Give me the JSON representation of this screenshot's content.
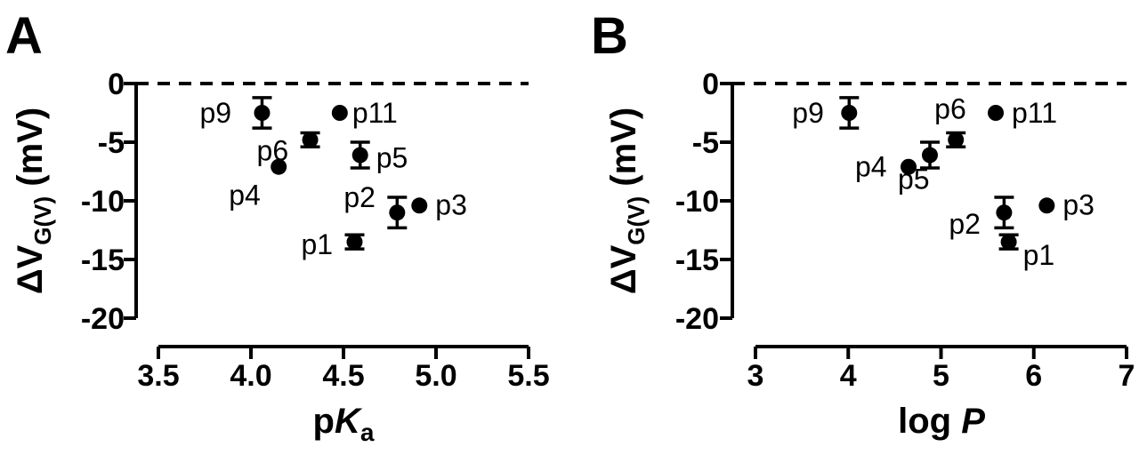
{
  "chart_data": [
    {
      "type": "scatter",
      "panel": "A",
      "xlabel": "pKa",
      "ylabel": "ΔVG(V) (mV)",
      "xlim": [
        3.5,
        5.5
      ],
      "ylim": [
        -20,
        0
      ],
      "xticks": [
        "3.5",
        "4.0",
        "4.5",
        "5.0",
        "5.5"
      ],
      "yticks": [
        "0",
        "-5",
        "-10",
        "-15",
        "-20"
      ],
      "reference_line_y": 0,
      "points": [
        {
          "label": "p9",
          "x": 4.06,
          "y": -2.5,
          "err": 1.3
        },
        {
          "label": "p11",
          "x": 4.48,
          "y": -2.5,
          "err": 0
        },
        {
          "label": "p6",
          "x": 4.32,
          "y": -4.8,
          "err": 0.6
        },
        {
          "label": "p5",
          "x": 4.59,
          "y": -6.1,
          "err": 1.1
        },
        {
          "label": "p4",
          "x": 4.15,
          "y": -7.1,
          "err": 0
        },
        {
          "label": "p2",
          "x": 4.79,
          "y": -11.0,
          "err": 1.3
        },
        {
          "label": "p3",
          "x": 4.91,
          "y": -10.4,
          "err": 0
        },
        {
          "label": "p1",
          "x": 4.56,
          "y": -13.5,
          "err": 0.6
        }
      ]
    },
    {
      "type": "scatter",
      "panel": "B",
      "xlabel": "log P",
      "ylabel": "ΔVG(V) (mV)",
      "xlim": [
        3,
        7
      ],
      "ylim": [
        -20,
        0
      ],
      "xticks": [
        "3",
        "4",
        "5",
        "6",
        "7"
      ],
      "yticks": [
        "0",
        "-5",
        "-10",
        "-15",
        "-20"
      ],
      "reference_line_y": 0,
      "points": [
        {
          "label": "p9",
          "x": 4.01,
          "y": -2.5,
          "err": 1.3
        },
        {
          "label": "p11",
          "x": 5.59,
          "y": -2.5,
          "err": 0
        },
        {
          "label": "p6",
          "x": 5.16,
          "y": -4.8,
          "err": 0.6
        },
        {
          "label": "p5",
          "x": 4.88,
          "y": -6.1,
          "err": 1.1
        },
        {
          "label": "p4",
          "x": 4.65,
          "y": -7.1,
          "err": 0
        },
        {
          "label": "p2",
          "x": 5.68,
          "y": -11.0,
          "err": 1.3
        },
        {
          "label": "p3",
          "x": 6.14,
          "y": -10.4,
          "err": 0
        },
        {
          "label": "p1",
          "x": 5.73,
          "y": -13.5,
          "err": 0.6
        }
      ]
    }
  ]
}
